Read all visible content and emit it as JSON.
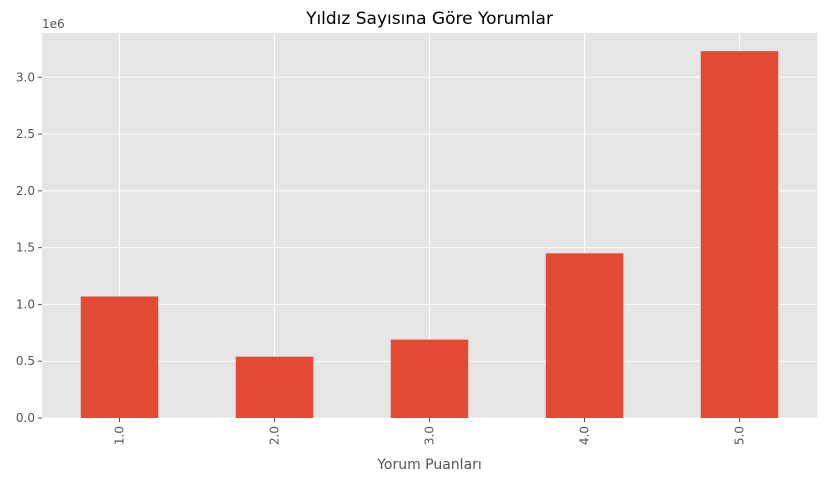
{
  "chart_data": {
    "type": "bar",
    "title": "Yıldız Sayısına Göre Yorumlar",
    "xlabel": "Yorum Puanları",
    "ylabel": "",
    "categories": [
      "1.0",
      "2.0",
      "3.0",
      "4.0",
      "5.0"
    ],
    "values": [
      1070000,
      540000,
      690000,
      1450000,
      3230000
    ],
    "ylim": [
      0,
      3390000
    ],
    "yticks": [
      0,
      500000,
      1000000,
      1500000,
      2000000,
      2500000,
      3000000
    ],
    "ytick_labels": [
      "0.0",
      "0.5",
      "1.0",
      "1.5",
      "2.0",
      "2.5",
      "3.0"
    ],
    "offset_label": "1e6",
    "grid": true,
    "colors": {
      "bar": "#E24A33",
      "plot_background": "#E5E5E5",
      "grid": "#FFFFFF"
    }
  }
}
